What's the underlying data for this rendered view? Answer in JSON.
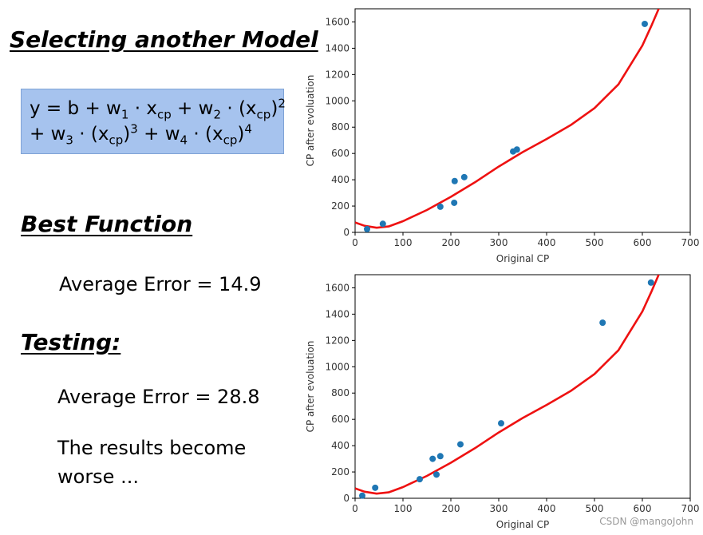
{
  "slide": {
    "title": "Selecting another Model",
    "formula": {
      "y": "y",
      "b": "b",
      "w1": "w",
      "w1_sub": "1",
      "x1": "x",
      "x1_sub": "cp",
      "w2": "w",
      "w2_sub": "2",
      "x2": "(x",
      "x2_sub": "cp",
      "x2_close": ")",
      "x2_pow": "2",
      "w3": "w",
      "w3_sub": "3",
      "x3": "(x",
      "x3_sub": "cp",
      "x3_close": ")",
      "x3_pow": "3",
      "w4": "w",
      "w4_sub": "4",
      "x4": "(x",
      "x4_sub": "cp",
      "x4_close": ")",
      "x4_pow": "4"
    },
    "best_heading": "Best Function",
    "best_error": "Average Error = 14.9",
    "testing_heading": "Testing:",
    "testing_error": "Average Error = 28.8",
    "conclusion": "The results become worse ...",
    "watermark": "CSDN @mangoJohn"
  },
  "chart_data": [
    {
      "type": "scatter",
      "xlabel": "Original CP",
      "ylabel": "CP after evoluation",
      "xlim": [
        0,
        700
      ],
      "ylim": [
        0,
        1700
      ],
      "xticks": [
        0,
        100,
        200,
        300,
        400,
        500,
        600,
        700
      ],
      "yticks": [
        0,
        200,
        400,
        600,
        800,
        1000,
        1200,
        1400,
        1600
      ],
      "grid": false,
      "point_color": "#1f77b4",
      "line_color": "#ee1111",
      "points": [
        [
          25,
          25
        ],
        [
          58,
          65
        ],
        [
          178,
          195
        ],
        [
          207,
          225
        ],
        [
          208,
          390
        ],
        [
          228,
          420
        ],
        [
          330,
          615
        ],
        [
          338,
          630
        ],
        [
          605,
          1585
        ]
      ],
      "curve": [
        [
          0,
          75
        ],
        [
          20,
          50
        ],
        [
          45,
          35
        ],
        [
          70,
          45
        ],
        [
          100,
          85
        ],
        [
          150,
          170
        ],
        [
          200,
          270
        ],
        [
          250,
          380
        ],
        [
          300,
          500
        ],
        [
          350,
          610
        ],
        [
          400,
          710
        ],
        [
          450,
          815
        ],
        [
          500,
          945
        ],
        [
          550,
          1125
        ],
        [
          600,
          1420
        ],
        [
          620,
          1580
        ],
        [
          640,
          1750
        ]
      ]
    },
    {
      "type": "scatter",
      "xlabel": "Original CP",
      "ylabel": "CP after evoluation",
      "xlim": [
        0,
        700
      ],
      "ylim": [
        0,
        1700
      ],
      "xticks": [
        0,
        100,
        200,
        300,
        400,
        500,
        600,
        700
      ],
      "yticks": [
        0,
        200,
        400,
        600,
        800,
        1000,
        1200,
        1400,
        1600
      ],
      "grid": false,
      "point_color": "#1f77b4",
      "line_color": "#ee1111",
      "points": [
        [
          15,
          20
        ],
        [
          42,
          80
        ],
        [
          135,
          145
        ],
        [
          162,
          300
        ],
        [
          170,
          180
        ],
        [
          178,
          320
        ],
        [
          220,
          410
        ],
        [
          305,
          570
        ],
        [
          517,
          1335
        ],
        [
          618,
          1640
        ]
      ],
      "curve": [
        [
          0,
          75
        ],
        [
          20,
          50
        ],
        [
          45,
          35
        ],
        [
          70,
          45
        ],
        [
          100,
          85
        ],
        [
          150,
          170
        ],
        [
          200,
          270
        ],
        [
          250,
          380
        ],
        [
          300,
          500
        ],
        [
          350,
          610
        ],
        [
          400,
          710
        ],
        [
          450,
          815
        ],
        [
          500,
          945
        ],
        [
          550,
          1125
        ],
        [
          600,
          1420
        ],
        [
          620,
          1580
        ],
        [
          640,
          1750
        ]
      ]
    }
  ]
}
